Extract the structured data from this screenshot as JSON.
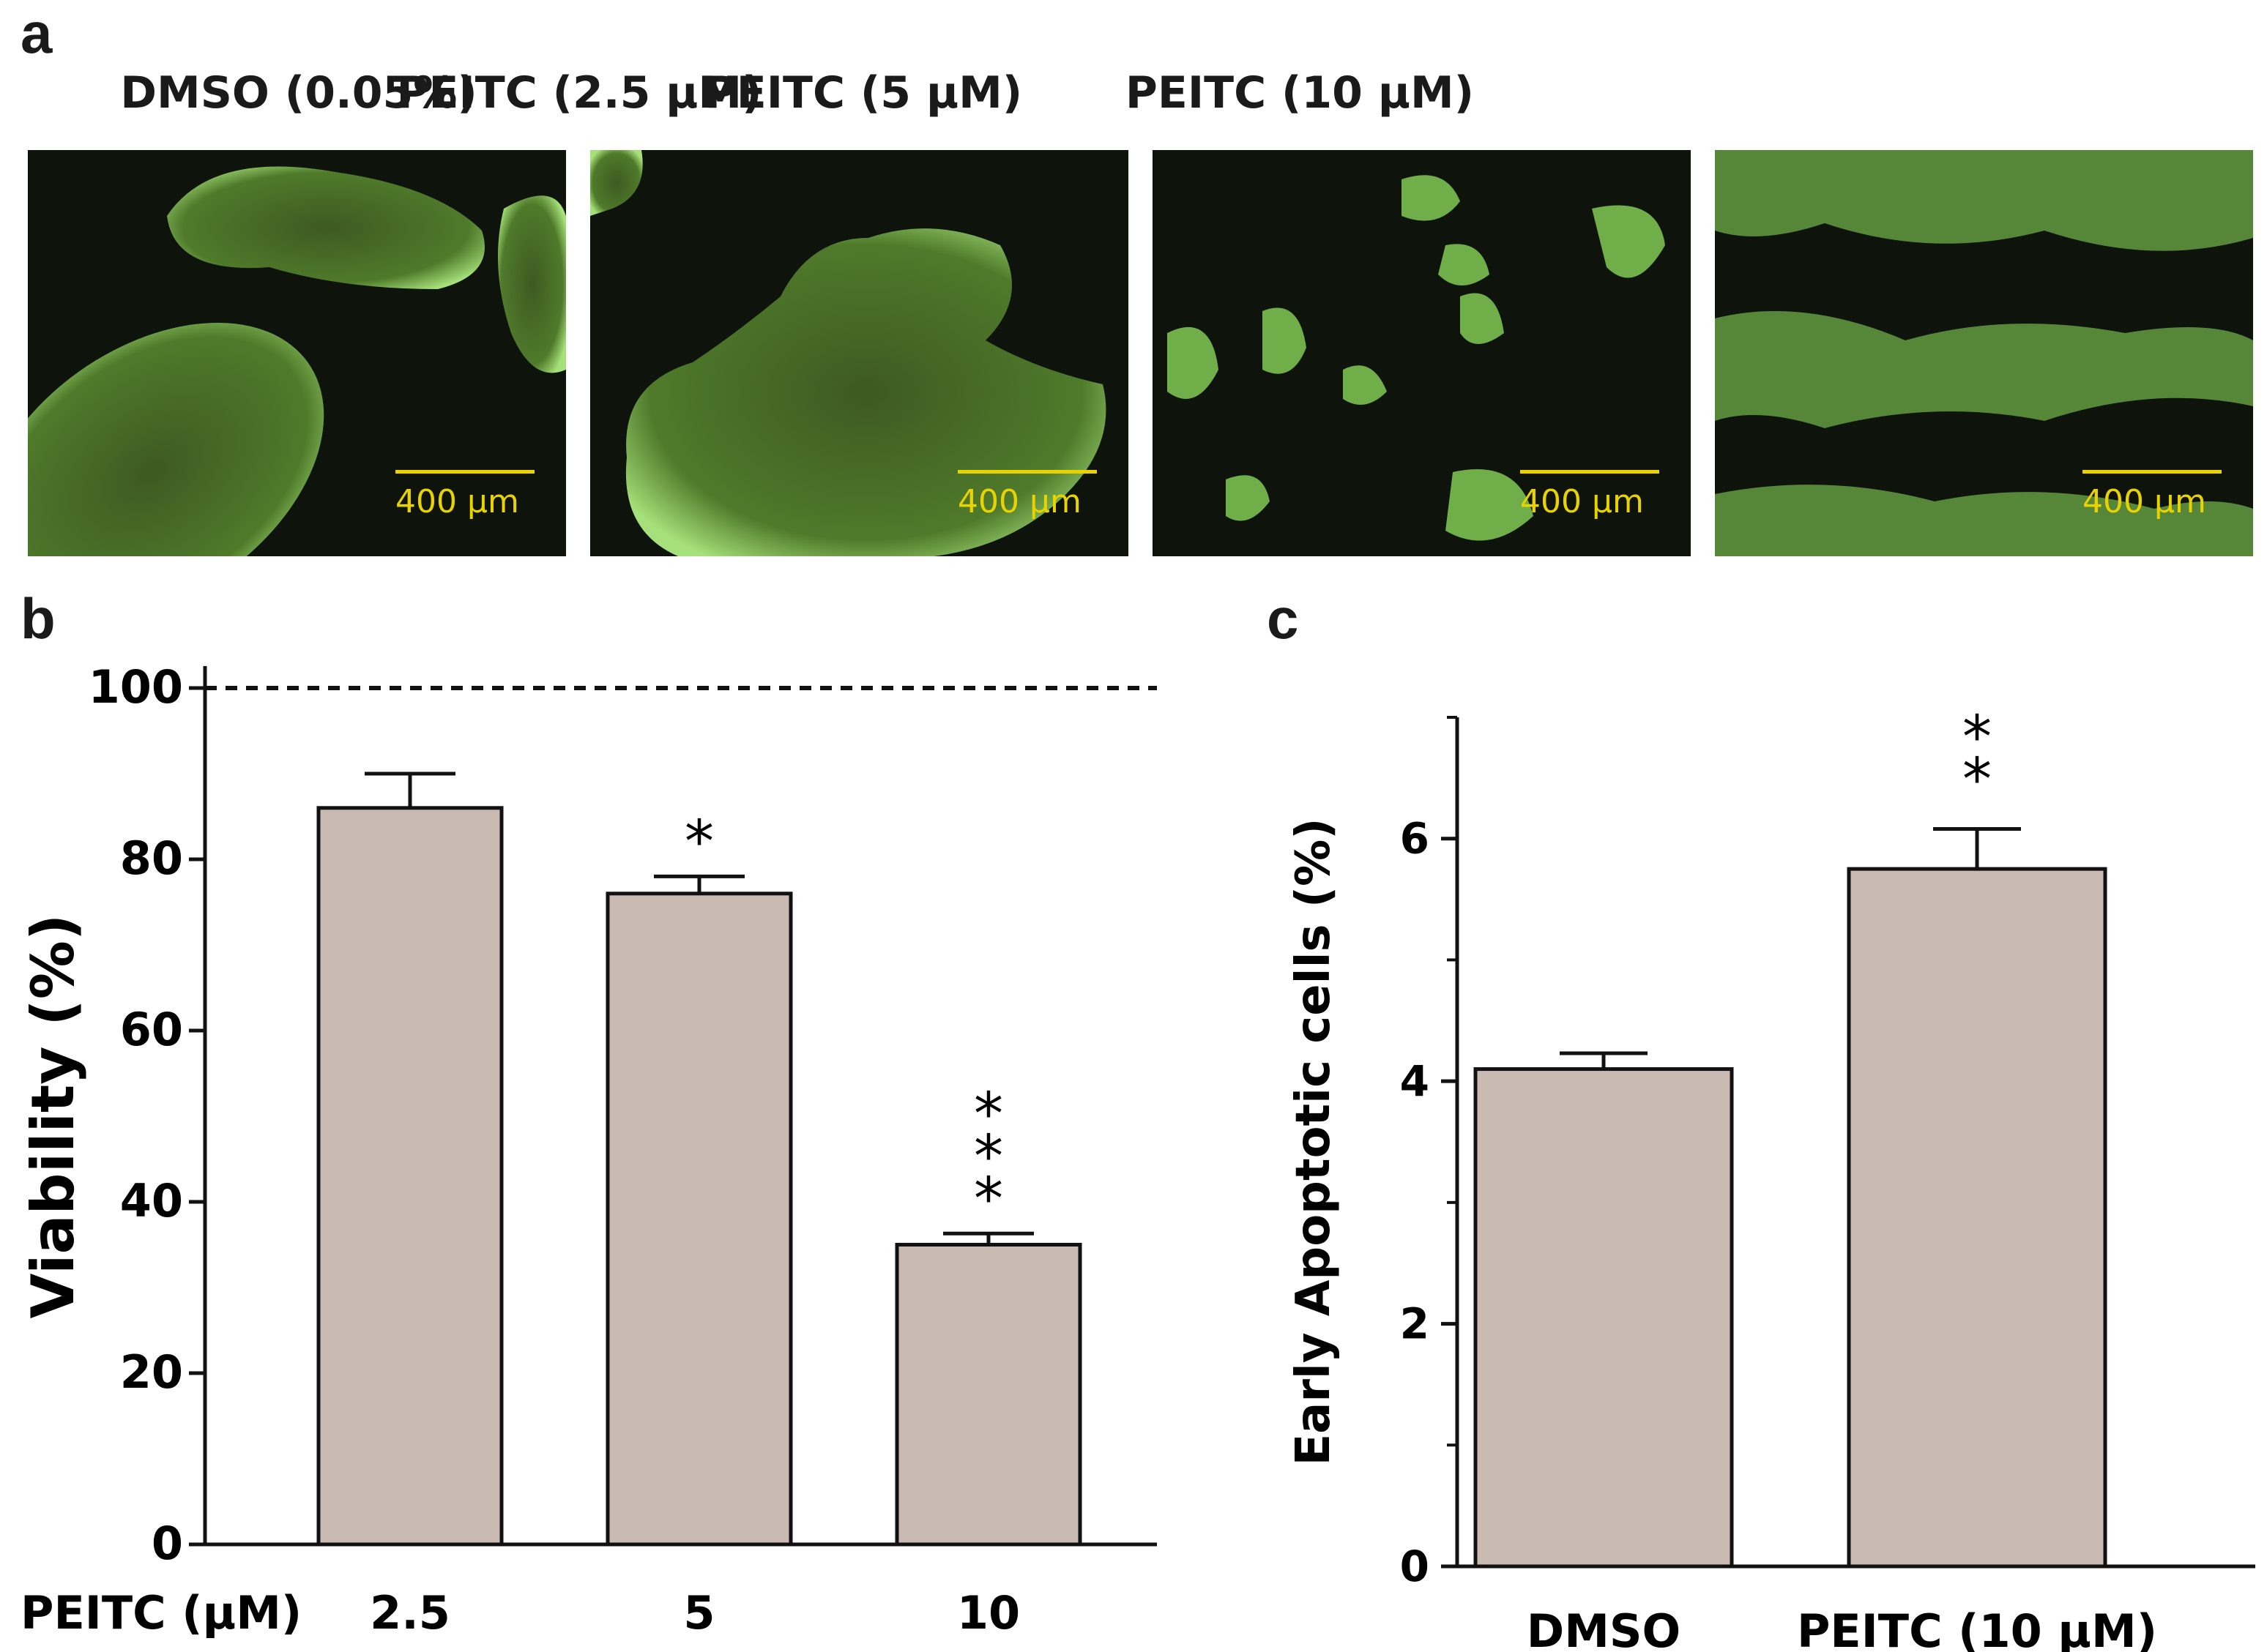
{
  "panels": {
    "a": {
      "letter": "a",
      "images": [
        {
          "title": "DMSO (0.05%)",
          "scale_label": "400 μm",
          "colony_density": "large-colonies"
        },
        {
          "title": "PEITC (2.5 μM)",
          "scale_label": "400 μm",
          "colony_density": "medium-colonies"
        },
        {
          "title": "PEITC (5 μM)",
          "scale_label": "400 μm",
          "colony_density": "small-clusters"
        },
        {
          "title": "PEITC (10 μM)",
          "scale_label": "400 μm",
          "colony_density": "dispersed-cells"
        }
      ]
    },
    "b": {
      "letter": "b"
    },
    "c": {
      "letter": "c"
    }
  },
  "colors": {
    "bar_fill": "#c9bab1",
    "bar_stroke": "#111111",
    "cell_green": "#8fd06a",
    "micro_background": "#0e140b",
    "scalebar": "#e8d200"
  },
  "chart_data": [
    {
      "panel": "b",
      "type": "bar",
      "xlabel": "PEITC (μM)",
      "ylabel": "Viability (%)",
      "categories": [
        "2.5",
        "5",
        "10"
      ],
      "values": [
        86,
        76,
        35
      ],
      "errors": [
        4,
        2,
        1.3
      ],
      "significance": [
        "",
        "*",
        "***"
      ],
      "reference_line": 100,
      "reference_line_style": "dashed",
      "ylim": [
        0,
        100
      ],
      "yticks": [
        "0",
        "20",
        "40",
        "60",
        "80",
        "100"
      ],
      "grid": false
    },
    {
      "panel": "c",
      "type": "bar",
      "xlabel": "",
      "ylabel": "Early Apoptotic cells (%)",
      "categories": [
        "DMSO",
        "PEITC (10 μM)"
      ],
      "values": [
        4.1,
        5.75
      ],
      "errors": [
        0.13,
        0.33
      ],
      "significance": [
        "",
        "**"
      ],
      "ylim": [
        0,
        7
      ],
      "yticks": [
        "0",
        "2",
        "4",
        "6"
      ],
      "minor_ticks": [
        1,
        3,
        5,
        7
      ],
      "grid": false
    }
  ]
}
